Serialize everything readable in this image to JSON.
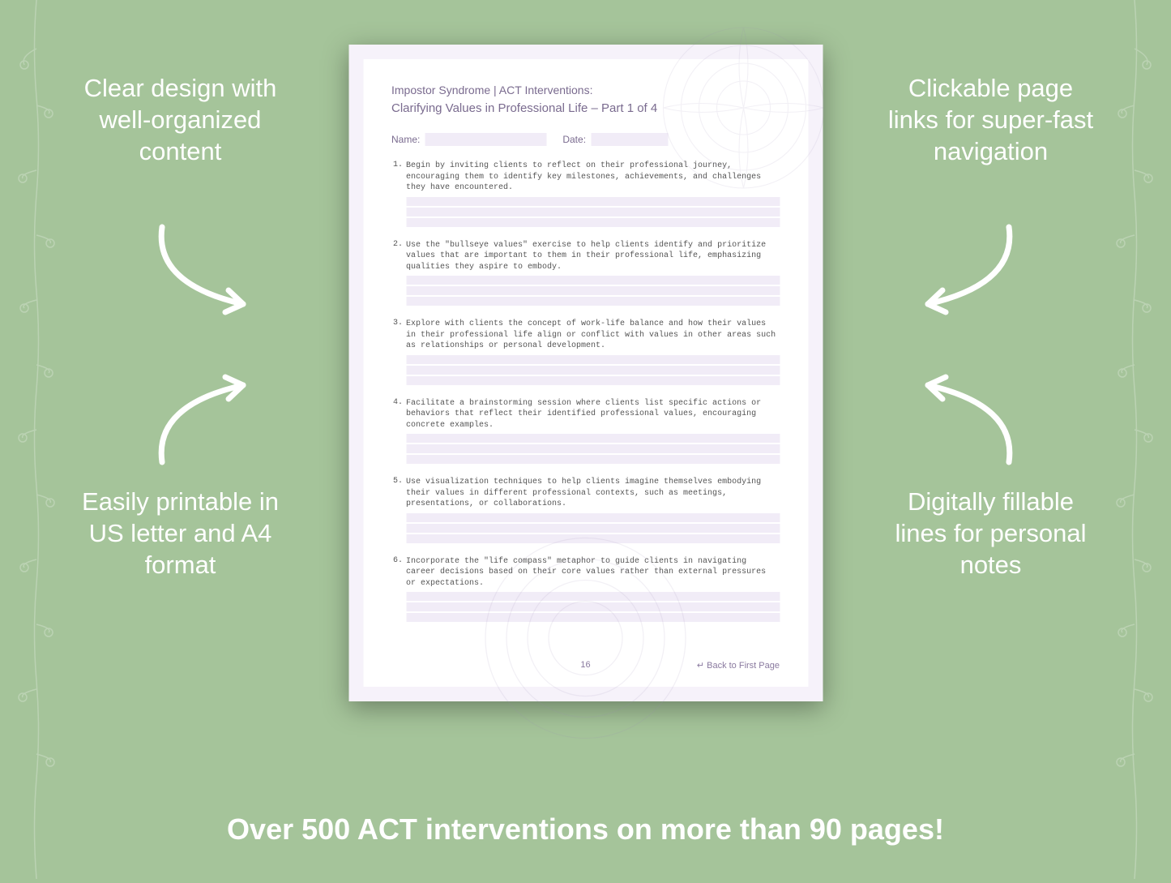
{
  "background_color": "#a5c49a",
  "callouts": {
    "top_left": "Clear design with well-organized content",
    "top_right": "Clickable page links for super-fast navigation",
    "bottom_left": "Easily printable in US letter and A4 format",
    "bottom_right": "Digitally fillable lines for personal notes"
  },
  "bottom_banner": "Over 500 ACT interventions on more than 90 pages!",
  "document": {
    "header": "Impostor Syndrome | ACT Interventions:",
    "subtitle": "Clarifying Values in Professional Life – Part 1 of 4",
    "name_label": "Name:",
    "date_label": "Date:",
    "page_number": "16",
    "back_link": "↵ Back to First Page",
    "fill_line_color": "#f1ecf7",
    "page_bg": "#f6f2fa",
    "inner_bg": "#ffffff",
    "text_color": "#7a6b8f",
    "items": [
      {
        "n": "1.",
        "text": "Begin by inviting clients to reflect on their professional journey, encouraging them to identify key milestones, achievements, and challenges they have encountered."
      },
      {
        "n": "2.",
        "text": "Use the \"bullseye values\" exercise to help clients identify and prioritize values that are important to them in their professional life, emphasizing qualities they aspire to embody."
      },
      {
        "n": "3.",
        "text": "Explore with clients the concept of work-life balance and how their values in their professional life align or conflict with values in other areas such as relationships or personal development."
      },
      {
        "n": "4.",
        "text": "Facilitate a brainstorming session where clients list specific actions or behaviors that reflect their identified professional values, encouraging concrete examples."
      },
      {
        "n": "5.",
        "text": "Use visualization techniques to help clients imagine themselves embodying their values in different professional contexts, such as meetings, presentations, or collaborations."
      },
      {
        "n": "6.",
        "text": "Incorporate the \"life compass\" metaphor to guide clients in navigating career decisions based on their core values rather than external pressures or expectations."
      }
    ]
  },
  "style": {
    "callout_color": "#ffffff",
    "callout_fontsize": 31,
    "banner_fontsize": 36,
    "arrow_color": "#ffffff",
    "arrow_stroke": 7
  }
}
